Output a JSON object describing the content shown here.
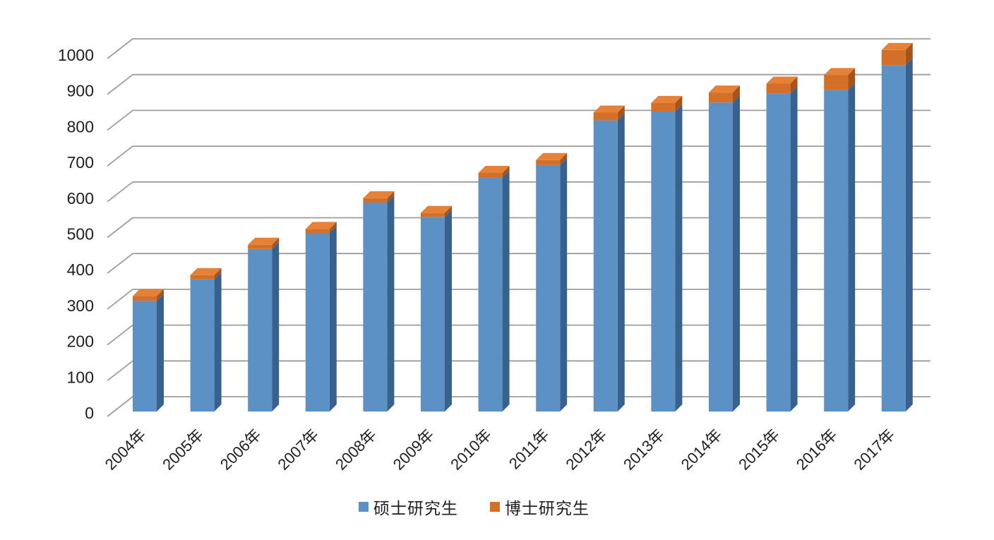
{
  "chart_data": {
    "type": "bar",
    "variant": "3d-stacked-column",
    "title": "",
    "xlabel": "",
    "ylabel": "",
    "categories": [
      "2004年",
      "2005年",
      "2006年",
      "2007年",
      "2008年",
      "2009年",
      "2010年",
      "2011年",
      "2012年",
      "2013年",
      "2014年",
      "2015年",
      "2016年",
      "2017年"
    ],
    "series": [
      {
        "name": "硕士研究生",
        "values": [
          310,
          370,
          455,
          500,
          585,
          545,
          655,
          690,
          815,
          840,
          865,
          890,
          900,
          970
        ],
        "front_color": "#5B91C5",
        "side_color": "#39618D",
        "top_color": "#6FA2D2"
      },
      {
        "name": "博士研究生",
        "values": [
          13,
          12,
          12,
          11,
          12,
          11,
          13,
          14,
          22,
          24,
          28,
          28,
          42,
          42
        ],
        "front_color": "#D36F26",
        "side_color": "#A5551B",
        "top_color": "#E58238"
      }
    ],
    "ylim": [
      0,
      1000
    ],
    "ytick_step": 100,
    "y_ticks": [
      0,
      100,
      200,
      300,
      400,
      500,
      600,
      700,
      800,
      900,
      1000
    ],
    "grid": true,
    "gridline_color": "#9D9D9D",
    "axis_text_color": "#1F1F1F",
    "background_color": "#FFFFFF",
    "legend_position": "bottom"
  }
}
